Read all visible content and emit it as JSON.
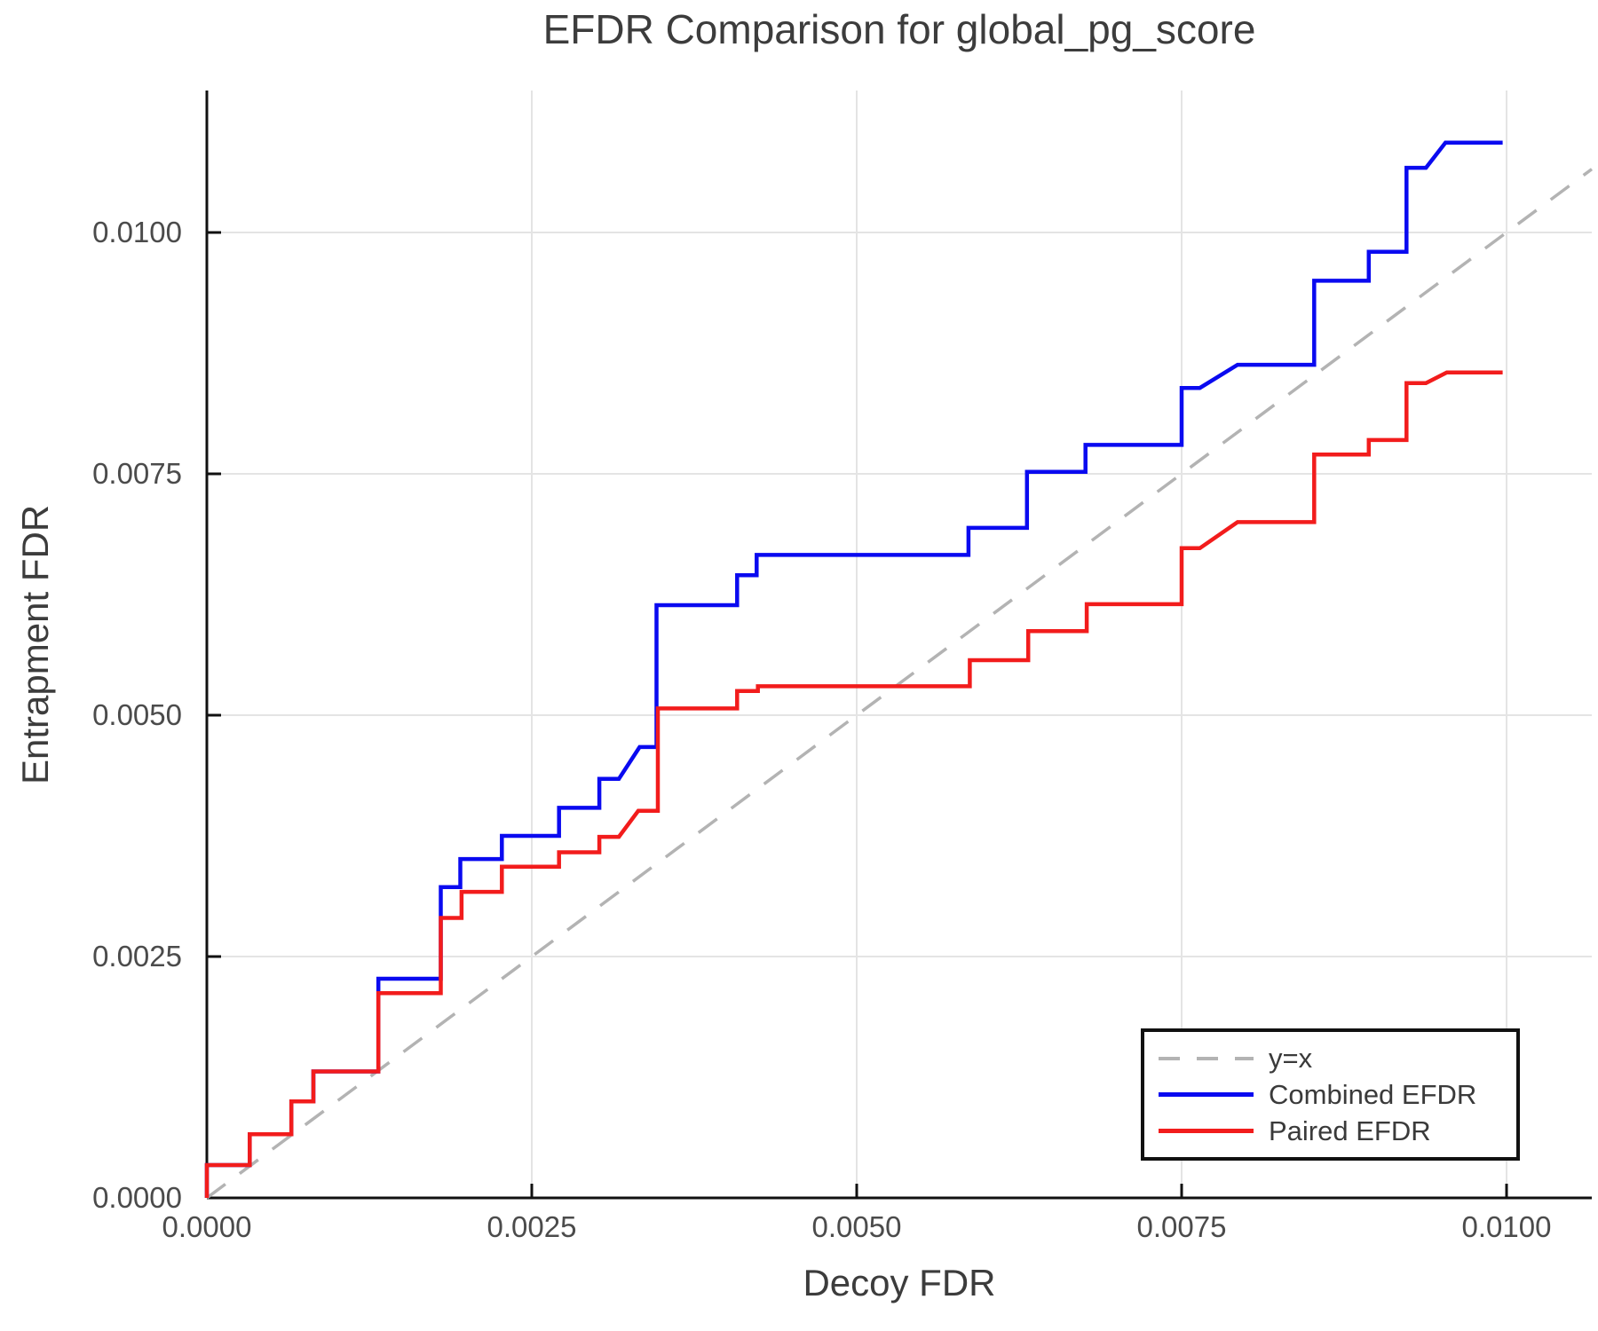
{
  "chart_data": {
    "type": "line",
    "subtype": "step",
    "title": "EFDR Comparison for global_pg_score",
    "xlabel": "Decoy FDR",
    "ylabel": "Entrapment FDR",
    "xlim": [
      0,
      0.010656
    ],
    "ylim": [
      0,
      0.01147
    ],
    "grid": true,
    "legend_position": "bottom-right",
    "xticks": {
      "values": [
        0.0,
        0.0025,
        0.005,
        0.0075,
        0.01
      ],
      "labels": [
        "0.0000",
        "0.0025",
        "0.0050",
        "0.0075",
        "0.0100"
      ]
    },
    "yticks": {
      "values": [
        0.0,
        0.0025,
        0.005,
        0.0075,
        0.01
      ],
      "labels": [
        "0.0000",
        "0.0025",
        "0.0050",
        "0.0075",
        "0.0100"
      ]
    },
    "colors": {
      "grid": "#e4e4e4",
      "spine": "#111111",
      "tick_label": "#4b4b4b",
      "title_text": "#3c3c3c"
    },
    "series": [
      {
        "name": "y=x",
        "style": "dashed",
        "color": "#b3b3b3",
        "points": [
          [
            0,
            0
          ],
          [
            0.010656,
            0.010656
          ]
        ]
      },
      {
        "name": "Combined EFDR",
        "style": "solid",
        "color": "#0a0af0",
        "points": [
          [
            0,
            0
          ],
          [
            0,
            0.00034
          ],
          [
            0.00033,
            0.00034
          ],
          [
            0.00033,
            0.00066
          ],
          [
            0.00065,
            0.00066
          ],
          [
            0.00065,
            0.001
          ],
          [
            0.00082,
            0.001
          ],
          [
            0.00082,
            0.00131
          ],
          [
            0.00132,
            0.00131
          ],
          [
            0.00132,
            0.00227
          ],
          [
            0.0018,
            0.00227
          ],
          [
            0.0018,
            0.00322
          ],
          [
            0.00195,
            0.00322
          ],
          [
            0.00195,
            0.00351
          ],
          [
            0.00227,
            0.00351
          ],
          [
            0.00227,
            0.00375
          ],
          [
            0.00271,
            0.00375
          ],
          [
            0.00271,
            0.00404
          ],
          [
            0.00302,
            0.00404
          ],
          [
            0.00302,
            0.00434
          ],
          [
            0.00317,
            0.00434
          ],
          [
            0.00333,
            0.00467
          ],
          [
            0.00346,
            0.00467
          ],
          [
            0.00346,
            0.00614
          ],
          [
            0.00408,
            0.00614
          ],
          [
            0.00408,
            0.00645
          ],
          [
            0.00423,
            0.00645
          ],
          [
            0.00423,
            0.00666
          ],
          [
            0.00586,
            0.00666
          ],
          [
            0.00586,
            0.00694
          ],
          [
            0.00631,
            0.00694
          ],
          [
            0.00631,
            0.00752
          ],
          [
            0.00676,
            0.00752
          ],
          [
            0.00676,
            0.0078
          ],
          [
            0.0075,
            0.0078
          ],
          [
            0.0075,
            0.00839
          ],
          [
            0.00764,
            0.00839
          ],
          [
            0.00793,
            0.00863
          ],
          [
            0.00852,
            0.00863
          ],
          [
            0.00852,
            0.0095
          ],
          [
            0.00894,
            0.0095
          ],
          [
            0.00894,
            0.0098
          ],
          [
            0.00923,
            0.0098
          ],
          [
            0.00923,
            0.01067
          ],
          [
            0.00938,
            0.01067
          ],
          [
            0.00953,
            0.01093
          ],
          [
            0.00997,
            0.01093
          ]
        ]
      },
      {
        "name": "Paired EFDR",
        "style": "solid",
        "color": "#f21c1c",
        "points": [
          [
            0,
            0
          ],
          [
            0,
            0.00034
          ],
          [
            0.00033,
            0.00034
          ],
          [
            0.00033,
            0.00066
          ],
          [
            0.00065,
            0.00066
          ],
          [
            0.00065,
            0.001
          ],
          [
            0.00082,
            0.001
          ],
          [
            0.00082,
            0.00131
          ],
          [
            0.00132,
            0.00131
          ],
          [
            0.00132,
            0.00212
          ],
          [
            0.0018,
            0.00212
          ],
          [
            0.0018,
            0.0029
          ],
          [
            0.00196,
            0.0029
          ],
          [
            0.00196,
            0.00317
          ],
          [
            0.00227,
            0.00317
          ],
          [
            0.00227,
            0.00343
          ],
          [
            0.00271,
            0.00343
          ],
          [
            0.00271,
            0.00358
          ],
          [
            0.00302,
            0.00358
          ],
          [
            0.00302,
            0.00374
          ],
          [
            0.00317,
            0.00374
          ],
          [
            0.00332,
            0.00401
          ],
          [
            0.00347,
            0.00401
          ],
          [
            0.00347,
            0.00507
          ],
          [
            0.00408,
            0.00507
          ],
          [
            0.00408,
            0.00525
          ],
          [
            0.00424,
            0.00525
          ],
          [
            0.00424,
            0.0053
          ],
          [
            0.00587,
            0.0053
          ],
          [
            0.00587,
            0.00557
          ],
          [
            0.00632,
            0.00557
          ],
          [
            0.00632,
            0.00587
          ],
          [
            0.00677,
            0.00587
          ],
          [
            0.00677,
            0.00615
          ],
          [
            0.0075,
            0.00615
          ],
          [
            0.0075,
            0.00673
          ],
          [
            0.00764,
            0.00673
          ],
          [
            0.00793,
            0.007
          ],
          [
            0.00852,
            0.007
          ],
          [
            0.00852,
            0.0077
          ],
          [
            0.00894,
            0.0077
          ],
          [
            0.00894,
            0.00785
          ],
          [
            0.00923,
            0.00785
          ],
          [
            0.00923,
            0.00844
          ],
          [
            0.00938,
            0.00844
          ],
          [
            0.00954,
            0.00855
          ],
          [
            0.00997,
            0.00855
          ]
        ]
      }
    ]
  }
}
